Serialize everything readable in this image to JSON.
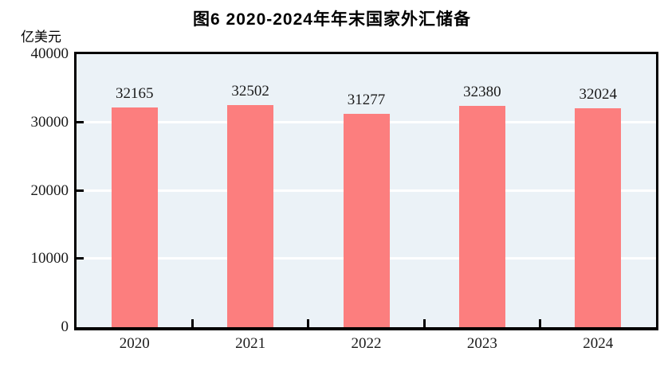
{
  "title": "图6  2020-2024年年末国家外汇储备",
  "unit_label": "亿美元",
  "colors": {
    "bar": "#FC7E7E",
    "plot_background": "#EBF2F7",
    "gridline": "#FFFFFF",
    "axis": "#000000",
    "text": "#1A1A1A"
  },
  "chart_data": {
    "type": "bar",
    "title": "图6  2020-2024年年末国家外汇储备",
    "categories": [
      "2020",
      "2021",
      "2022",
      "2023",
      "2024"
    ],
    "values": [
      32165,
      32502,
      31277,
      32380,
      32024
    ],
    "data_labels": [
      "32165",
      "32502",
      "31277",
      "32380",
      "32024"
    ],
    "xlabel": "",
    "ylabel": "亿美元",
    "ylim": [
      0,
      40000
    ],
    "yticks": [
      0,
      10000,
      20000,
      30000,
      40000
    ],
    "ytick_labels": [
      "0",
      "10000",
      "20000",
      "30000",
      "40000"
    ],
    "grid": true,
    "gridlines_at": [
      10000,
      20000,
      30000
    ],
    "legend": false
  }
}
